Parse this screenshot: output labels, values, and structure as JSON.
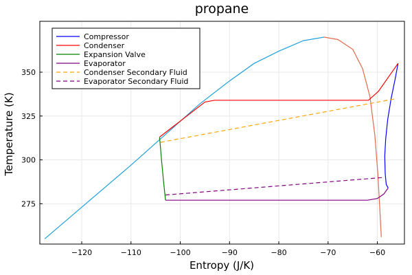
{
  "chart_data": {
    "type": "line",
    "title": "propane",
    "xlabel": "Entropy (J/K)",
    "ylabel": "Temperature (K)",
    "xlim": [
      -128.5,
      -54.5
    ],
    "ylim": [
      252,
      379
    ],
    "xticks": [
      -120,
      -110,
      -100,
      -90,
      -80,
      -70,
      -60
    ],
    "xtick_labels": [
      "−120",
      "−110",
      "−100",
      "−90",
      "−80",
      "−70",
      "−60"
    ],
    "yticks": [
      275,
      300,
      325,
      350
    ],
    "ytick_labels": [
      "275",
      "300",
      "325",
      "350"
    ],
    "grid": true,
    "legend_position": "top-left",
    "saturation_dome": {
      "colors": {
        "liquid": "#1ea0dc",
        "vapor": "#e06a4a"
      },
      "liquid": [
        [
          -127.5,
          255
        ],
        [
          -120,
          273
        ],
        [
          -110,
          297
        ],
        [
          -104,
          312
        ],
        [
          -96,
          332
        ],
        [
          -90,
          345
        ],
        [
          -85,
          355
        ],
        [
          -80,
          362
        ],
        [
          -75,
          368
        ],
        [
          -70.8,
          370
        ]
      ],
      "vapor": [
        [
          -70.8,
          370
        ],
        [
          -68,
          368.6
        ],
        [
          -65,
          363
        ],
        [
          -63,
          352
        ],
        [
          -61.5,
          336
        ],
        [
          -60.5,
          314
        ],
        [
          -59.9,
          292
        ],
        [
          -59.5,
          272
        ],
        [
          -59.2,
          256
        ]
      ]
    },
    "series": [
      {
        "name": "Compressor",
        "color": "#0000ff",
        "dash": "",
        "points": [
          [
            -57.8,
            284
          ],
          [
            -58.2,
            286
          ],
          [
            -58.4,
            292
          ],
          [
            -58.5,
            302
          ],
          [
            -58.3,
            312
          ],
          [
            -57.9,
            323
          ],
          [
            -57.2,
            335
          ],
          [
            -56.4,
            346
          ],
          [
            -55.8,
            355
          ]
        ]
      },
      {
        "name": "Condenser",
        "color": "#ff0000",
        "dash": "",
        "points": [
          [
            -55.8,
            355
          ],
          [
            -59.8,
            339
          ],
          [
            -61.8,
            334
          ],
          [
            -62,
            334
          ],
          [
            -93,
            334
          ],
          [
            -95,
            333
          ],
          [
            -104.2,
            313
          ]
        ]
      },
      {
        "name": "Expansion Valve",
        "color": "#008000",
        "dash": "",
        "points": [
          [
            -104.2,
            313
          ],
          [
            -103.8,
            300
          ],
          [
            -103.4,
            288
          ],
          [
            -103,
            277
          ]
        ]
      },
      {
        "name": "Evaporator",
        "color": "#800080",
        "dash": "",
        "points": [
          [
            -103,
            277
          ],
          [
            -62,
            277
          ],
          [
            -60,
            278
          ],
          [
            -58.7,
            280.5
          ],
          [
            -57.8,
            284
          ]
        ]
      },
      {
        "name": "Condenser Secondary Fluid",
        "color": "#ffa500",
        "dash": "6,4",
        "points": [
          [
            -104,
            310
          ],
          [
            -56,
            335
          ]
        ]
      },
      {
        "name": "Evaporator Secondary Fluid",
        "color": "#800080",
        "dash": "6,4",
        "points": [
          [
            -103,
            280
          ],
          [
            -58.7,
            290
          ]
        ]
      }
    ]
  }
}
